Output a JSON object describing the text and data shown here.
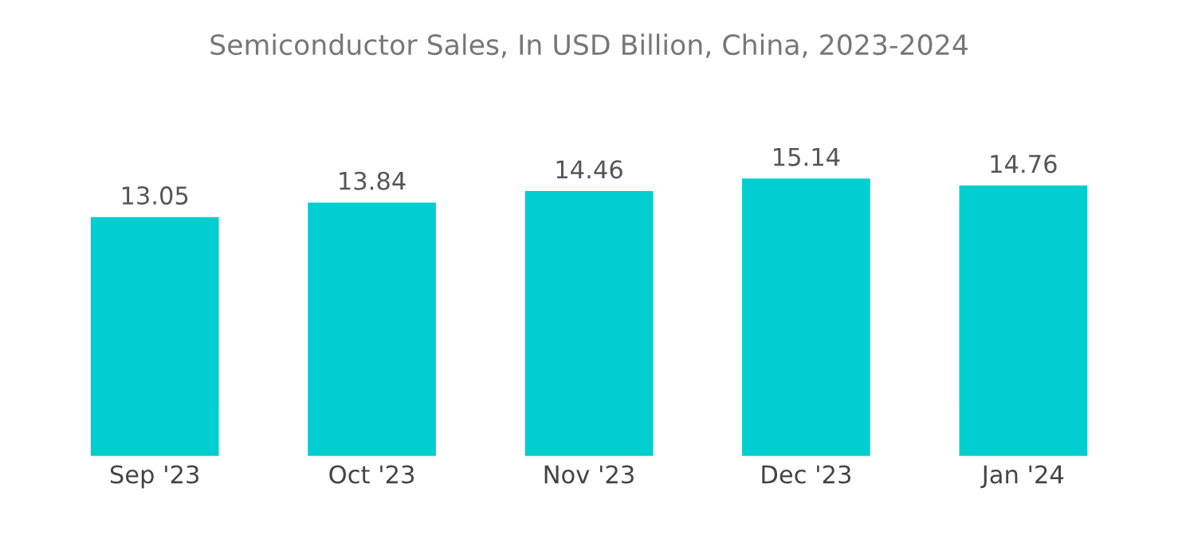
{
  "chart_data": {
    "type": "bar",
    "title": "Semiconductor Sales, In USD Billion, China, 2023-2024",
    "categories": [
      "Sep '23",
      "Oct '23",
      "Nov '23",
      "Dec '23",
      "Jan '24"
    ],
    "values": [
      13.05,
      13.84,
      14.46,
      15.14,
      14.76
    ],
    "color": "#00ced1",
    "data_labels": true,
    "tick_labels": "x",
    "grid": false,
    "legend": false
  }
}
